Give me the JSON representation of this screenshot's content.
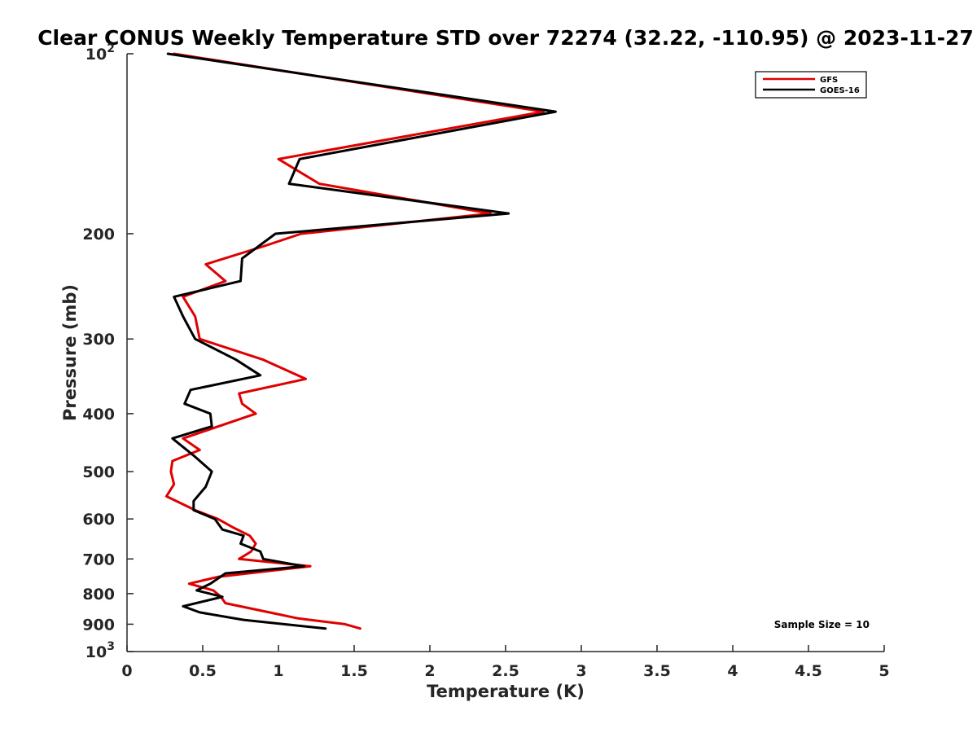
{
  "chart_data": {
    "type": "line",
    "title": "Clear CONUS Weekly Temperature STD over 72274 (32.22, -110.95) @ 2023-11-27",
    "xlabel": "Temperature (K)",
    "ylabel": "Pressure (mb)",
    "xlim": [
      0,
      5
    ],
    "ylim": [
      100,
      1000
    ],
    "y_scale": "log",
    "y_reversed": true,
    "grid": false,
    "legend_position": "top-right",
    "x_ticks": [
      "0",
      "0.5",
      "1",
      "1.5",
      "2",
      "2.5",
      "3",
      "3.5",
      "4",
      "4.5",
      "5"
    ],
    "y_ticks": [
      {
        "value": 100,
        "base": "10",
        "exp": "2"
      },
      {
        "value": 200,
        "label": "200"
      },
      {
        "value": 300,
        "label": "300"
      },
      {
        "value": 400,
        "label": "400"
      },
      {
        "value": 500,
        "label": "500"
      },
      {
        "value": 600,
        "label": "600"
      },
      {
        "value": 700,
        "label": "700"
      },
      {
        "value": 800,
        "label": "800"
      },
      {
        "value": 900,
        "label": "900"
      },
      {
        "value": 1000,
        "base": "10",
        "exp": "3"
      }
    ],
    "series": [
      {
        "name": "GFS",
        "color": "#e00000",
        "points": [
          {
            "x": 0.31,
            "y": 100
          },
          {
            "x": 2.75,
            "y": 125
          },
          {
            "x": 1.0,
            "y": 150
          },
          {
            "x": 1.27,
            "y": 165
          },
          {
            "x": 2.4,
            "y": 185
          },
          {
            "x": 1.15,
            "y": 200
          },
          {
            "x": 0.9,
            "y": 210
          },
          {
            "x": 0.52,
            "y": 225
          },
          {
            "x": 0.65,
            "y": 240
          },
          {
            "x": 0.37,
            "y": 255
          },
          {
            "x": 0.45,
            "y": 275
          },
          {
            "x": 0.48,
            "y": 300
          },
          {
            "x": 0.9,
            "y": 325
          },
          {
            "x": 1.18,
            "y": 350
          },
          {
            "x": 0.74,
            "y": 370
          },
          {
            "x": 0.76,
            "y": 385
          },
          {
            "x": 0.85,
            "y": 400
          },
          {
            "x": 0.37,
            "y": 440
          },
          {
            "x": 0.48,
            "y": 460
          },
          {
            "x": 0.3,
            "y": 480
          },
          {
            "x": 0.29,
            "y": 500
          },
          {
            "x": 0.31,
            "y": 525
          },
          {
            "x": 0.26,
            "y": 550
          },
          {
            "x": 0.45,
            "y": 580
          },
          {
            "x": 0.6,
            "y": 600
          },
          {
            "x": 0.7,
            "y": 620
          },
          {
            "x": 0.81,
            "y": 640
          },
          {
            "x": 0.85,
            "y": 660
          },
          {
            "x": 0.82,
            "y": 680
          },
          {
            "x": 0.74,
            "y": 700
          },
          {
            "x": 1.21,
            "y": 720
          },
          {
            "x": 0.6,
            "y": 750
          },
          {
            "x": 0.41,
            "y": 770
          },
          {
            "x": 0.57,
            "y": 790
          },
          {
            "x": 0.62,
            "y": 810
          },
          {
            "x": 0.65,
            "y": 830
          },
          {
            "x": 0.94,
            "y": 860
          },
          {
            "x": 1.13,
            "y": 880
          },
          {
            "x": 1.44,
            "y": 900
          },
          {
            "x": 1.54,
            "y": 915
          }
        ]
      },
      {
        "name": "GOES-16",
        "color": "#000000",
        "points": [
          {
            "x": 0.27,
            "y": 100
          },
          {
            "x": 2.83,
            "y": 125
          },
          {
            "x": 1.14,
            "y": 150
          },
          {
            "x": 1.07,
            "y": 165
          },
          {
            "x": 2.52,
            "y": 185
          },
          {
            "x": 0.98,
            "y": 200
          },
          {
            "x": 0.76,
            "y": 220
          },
          {
            "x": 0.75,
            "y": 240
          },
          {
            "x": 0.31,
            "y": 255
          },
          {
            "x": 0.37,
            "y": 275
          },
          {
            "x": 0.45,
            "y": 300
          },
          {
            "x": 0.72,
            "y": 325
          },
          {
            "x": 0.88,
            "y": 345
          },
          {
            "x": 0.42,
            "y": 365
          },
          {
            "x": 0.38,
            "y": 385
          },
          {
            "x": 0.55,
            "y": 400
          },
          {
            "x": 0.56,
            "y": 420
          },
          {
            "x": 0.3,
            "y": 440
          },
          {
            "x": 0.44,
            "y": 470
          },
          {
            "x": 0.56,
            "y": 500
          },
          {
            "x": 0.52,
            "y": 530
          },
          {
            "x": 0.44,
            "y": 560
          },
          {
            "x": 0.44,
            "y": 580
          },
          {
            "x": 0.58,
            "y": 600
          },
          {
            "x": 0.63,
            "y": 625
          },
          {
            "x": 0.77,
            "y": 640
          },
          {
            "x": 0.75,
            "y": 660
          },
          {
            "x": 0.88,
            "y": 680
          },
          {
            "x": 0.9,
            "y": 700
          },
          {
            "x": 1.17,
            "y": 720
          },
          {
            "x": 0.65,
            "y": 740
          },
          {
            "x": 0.55,
            "y": 770
          },
          {
            "x": 0.46,
            "y": 790
          },
          {
            "x": 0.63,
            "y": 810
          },
          {
            "x": 0.37,
            "y": 840
          },
          {
            "x": 0.48,
            "y": 860
          },
          {
            "x": 0.77,
            "y": 885
          },
          {
            "x": 1.31,
            "y": 915
          }
        ]
      }
    ],
    "annotations": [
      "Sample Size = 10"
    ]
  }
}
